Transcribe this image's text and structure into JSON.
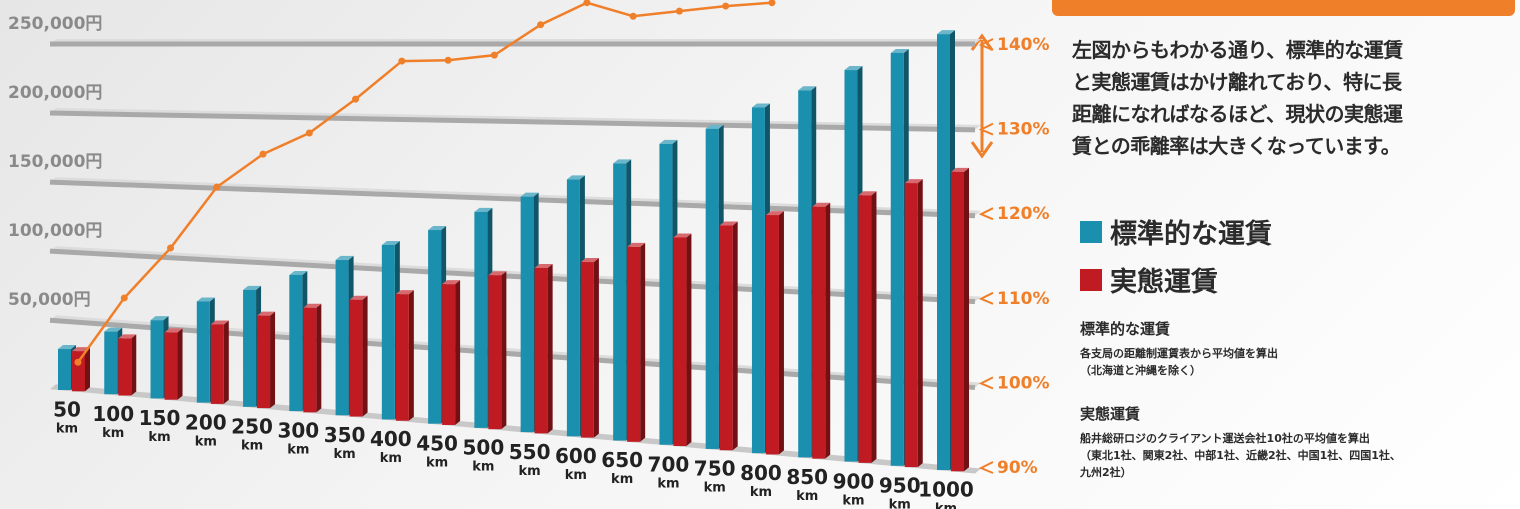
{
  "chart_data": {
    "type": "bar",
    "x_unit": "km",
    "categories": [
      "50",
      "100",
      "150",
      "200",
      "250",
      "300",
      "350",
      "400",
      "450",
      "500",
      "550",
      "600",
      "650",
      "700",
      "750",
      "800",
      "850",
      "900",
      "950",
      "1000"
    ],
    "series": [
      {
        "name": "標準的な運賃",
        "color": "#1b8fae",
        "values": [
          29600,
          44700,
          55200,
          70500,
          80600,
          92700,
          104600,
          116200,
          127500,
          140700,
          151700,
          163700,
          174700,
          187700,
          197700,
          211200,
          222000,
          234400,
          244700,
          255800
        ]
      },
      {
        "name": "実態運賃",
        "color": "#c01a22",
        "values": [
          28900,
          40600,
          47300,
          55200,
          63500,
          71000,
          78400,
          84000,
          92400,
          99900,
          106200,
          111500,
          122500,
          129700,
          138300,
          145800,
          151900,
          159700,
          167800,
          175200
        ]
      },
      {
        "color": "#f07f2a",
        "axis": "y2",
        "values": [
          102.5,
          110.1,
          116.0,
          123.2,
          127.1,
          129.6,
          133.6,
          138.1,
          138.2,
          138.8,
          142.4,
          145,
          143.4,
          144.0,
          144.6,
          145,
          null,
          null,
          null,
          null
        ]
      }
    ],
    "ylim": [
      0,
      250000
    ],
    "yticks": [
      {
        "value": 50000,
        "label": "50,000円"
      },
      {
        "value": 100000,
        "label": "100,000円"
      },
      {
        "value": 150000,
        "label": "150,000円"
      },
      {
        "value": 200000,
        "label": "200,000円"
      },
      {
        "value": 250000,
        "label": "250,000円"
      }
    ],
    "y2lim": [
      90,
      145
    ],
    "y2ticks": [
      {
        "value": 90,
        "label": "90%"
      },
      {
        "value": 100,
        "label": "100%"
      },
      {
        "value": 110,
        "label": "110%"
      },
      {
        "value": 120,
        "label": "120%"
      },
      {
        "value": 130,
        "label": "130%"
      },
      {
        "value": 140,
        "label": "140%"
      }
    ],
    "grid": true
  },
  "panel": {
    "description": [
      "左図からもわかる通り、標準的な運賃",
      "と実態運賃はかけ離れており、特に長",
      "距離になればなるほど、現状の実態運",
      "賃との乖離率は大きくなっています。"
    ],
    "notes": [
      {
        "title": "標準的な運賃",
        "lines": [
          "各支局の距離制運賃表から平均値を算出",
          "（北海道と沖縄を除く）"
        ]
      },
      {
        "title": "実態運賃",
        "lines": [
          "船井総研ロジのクライアント運送会社10社の平均値を算出",
          "（東北1社、関東2社、中部1社、近畿2社、中国1社、四国1社、",
          "九州2社）"
        ]
      }
    ]
  }
}
